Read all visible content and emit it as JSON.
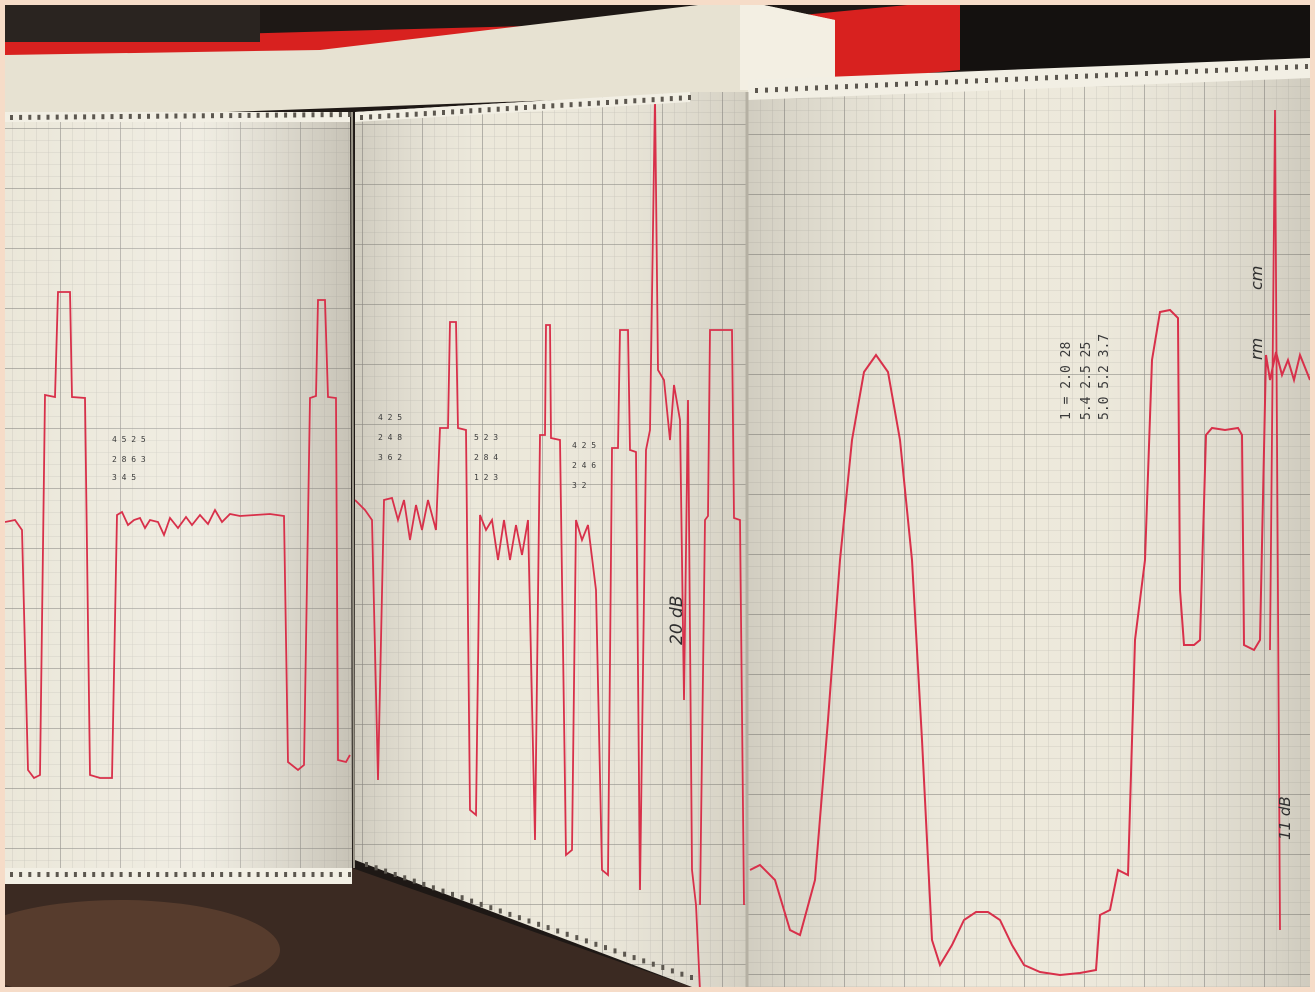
{
  "scene": {
    "description_labels": {
      "paper": "chart-recorder-paper",
      "trace": "red-recorder-trace"
    },
    "colors": {
      "paper": "#ece8da",
      "paper_shadow": "#cfcabc",
      "grid_major": "#8c8c8a",
      "grid_minor": "#c2c0b6",
      "trace": "#d8304a",
      "binder": "#d8211f",
      "background_dark": "#1e1815",
      "frame": "#f6dcc8",
      "handwriting": "#3a3a3a"
    },
    "annotations": {
      "label_20db": "20 dB",
      "label_11db": "11 dB",
      "label_rm": "rm",
      "label_cm": "cm"
    }
  }
}
